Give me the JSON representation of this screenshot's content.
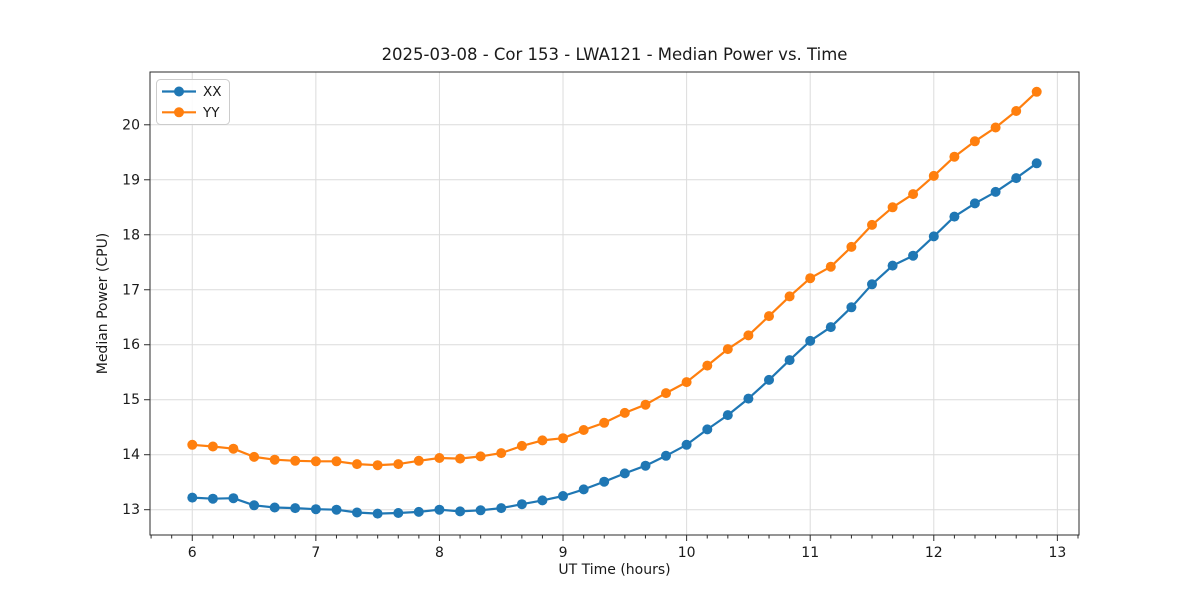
{
  "chart_data": {
    "type": "line",
    "title": "2025-03-08 - Cor 153 - LWA121 - Median Power vs. Time",
    "xlabel": "UT Time (hours)",
    "ylabel": "Median Power (CPU)",
    "x": [
      6.0,
      6.167,
      6.333,
      6.5,
      6.667,
      6.833,
      7.0,
      7.167,
      7.333,
      7.5,
      7.667,
      7.833,
      8.0,
      8.167,
      8.333,
      8.5,
      8.667,
      8.833,
      9.0,
      9.167,
      9.333,
      9.5,
      9.667,
      9.833,
      10.0,
      10.167,
      10.333,
      10.5,
      10.667,
      10.833,
      11.0,
      11.167,
      11.333,
      11.5,
      11.667,
      11.833,
      12.0,
      12.167,
      12.333,
      12.5,
      12.667,
      12.833
    ],
    "series": [
      {
        "name": "XX",
        "color": "#1f77b4",
        "values": [
          13.22,
          13.2,
          13.21,
          13.08,
          13.04,
          13.03,
          13.01,
          13.0,
          12.95,
          12.93,
          12.94,
          12.96,
          13.0,
          12.97,
          12.99,
          13.03,
          13.1,
          13.17,
          13.25,
          13.37,
          13.51,
          13.66,
          13.8,
          13.98,
          14.18,
          14.46,
          14.72,
          15.02,
          15.36,
          15.72,
          16.07,
          16.32,
          16.68,
          17.1,
          17.44,
          17.62,
          17.97,
          18.33,
          18.57,
          18.78,
          19.03,
          19.3
        ]
      },
      {
        "name": "YY",
        "color": "#ff7f0e",
        "values": [
          14.18,
          14.15,
          14.11,
          13.96,
          13.91,
          13.89,
          13.88,
          13.88,
          13.83,
          13.81,
          13.83,
          13.89,
          13.94,
          13.93,
          13.97,
          14.03,
          14.16,
          14.26,
          14.3,
          14.45,
          14.58,
          14.76,
          14.91,
          15.12,
          15.32,
          15.62,
          15.92,
          16.17,
          16.52,
          16.88,
          17.21,
          17.42,
          17.78,
          18.18,
          18.5,
          18.74,
          19.07,
          19.42,
          19.7,
          19.95,
          20.25,
          20.6
        ]
      }
    ],
    "xlim": [
      5.658,
      13.175
    ],
    "ylim": [
      12.54,
      20.96
    ],
    "xticks": [
      6,
      7,
      8,
      9,
      10,
      11,
      12,
      13
    ],
    "yticks": [
      13,
      14,
      15,
      16,
      17,
      18,
      19,
      20
    ],
    "x_minor_step": 0.16667,
    "grid": true,
    "legend_position": "upper-left",
    "marker": "circle",
    "background": "#ffffff",
    "grid_color": "#dcdcdc"
  }
}
